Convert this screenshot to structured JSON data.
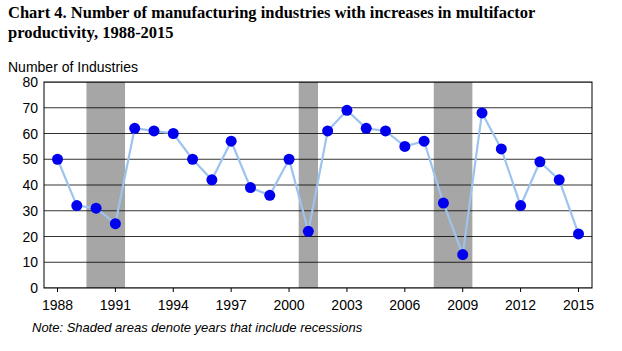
{
  "chart_data": {
    "type": "line",
    "title": "Chart 4. Number of manufacturing industries with increases in multifactor productivity, 1988-2015",
    "y_label": "Number of Industries",
    "note": "Note: Shaded areas denote years that include recessions",
    "x": [
      1988,
      1989,
      1990,
      1991,
      1992,
      1993,
      1994,
      1995,
      1996,
      1997,
      1998,
      1999,
      2000,
      2001,
      2002,
      2003,
      2004,
      2005,
      2006,
      2007,
      2008,
      2009,
      2010,
      2011,
      2012,
      2013,
      2014,
      2015
    ],
    "series": [
      {
        "name": "Number of manufacturing industries with increases in multifactor productivity",
        "color": "#0000ee",
        "marker": "circle",
        "values": [
          50,
          32,
          31,
          25,
          62,
          61,
          60,
          50,
          42,
          57,
          39,
          36,
          50,
          22,
          61,
          69,
          62,
          61,
          55,
          57,
          33,
          13,
          68,
          54,
          32,
          49,
          42,
          21
        ]
      }
    ],
    "recessions": [
      [
        1989.5,
        1991.5
      ],
      [
        2000.5,
        2001.5
      ],
      [
        2007.5,
        2009.5
      ]
    ],
    "xlim": [
      1987.3,
      2015.7
    ],
    "xticks": [
      1988,
      1991,
      1994,
      1997,
      2000,
      2003,
      2006,
      2009,
      2012,
      2015
    ],
    "ylim": [
      0,
      80
    ],
    "yticks": [
      0,
      10,
      20,
      30,
      40,
      50,
      60,
      70,
      80
    ],
    "grid": true
  }
}
